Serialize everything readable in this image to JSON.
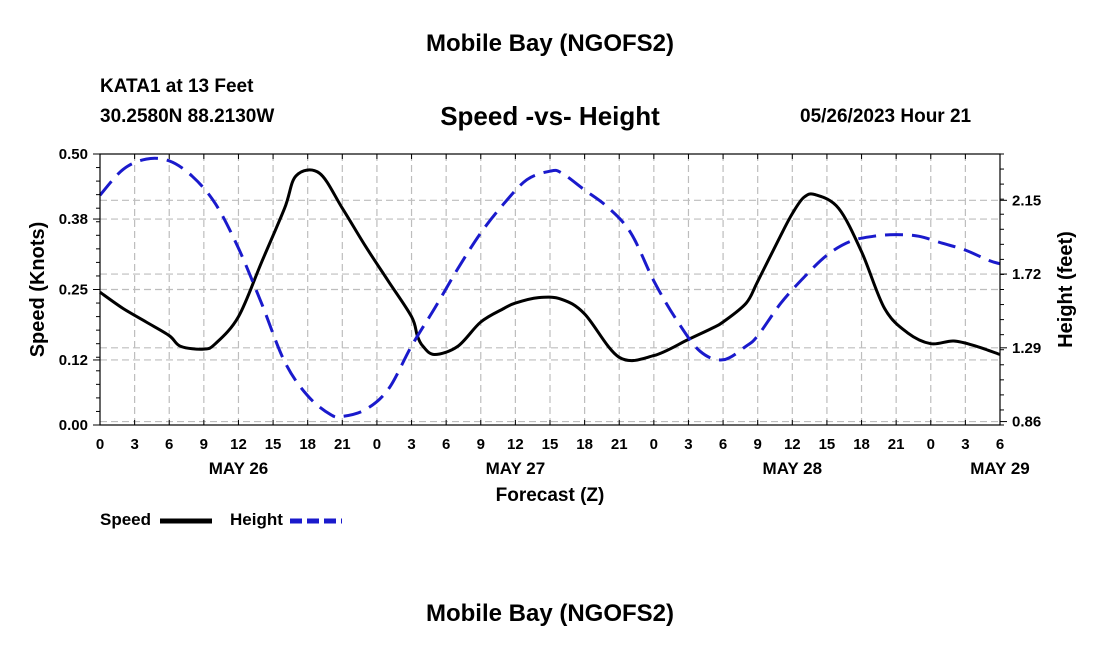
{
  "header": {
    "title": "Mobile Bay (NGOFS2)",
    "station": "KATA1 at 13 Feet",
    "coords": "30.2580N  88.2130W",
    "subtitle": "Speed -vs- Height",
    "datetime": "05/26/2023 Hour 21"
  },
  "footer": {
    "title": "Mobile Bay (NGOFS2)"
  },
  "chart_data": {
    "type": "line",
    "title": "Speed -vs- Height",
    "xlabel": "Forecast (Z)",
    "ylabel": "Speed (Knots)",
    "y2label": "Height (feet)",
    "x_tick_labels": [
      "0",
      "3",
      "6",
      "9",
      "12",
      "15",
      "18",
      "21",
      "0",
      "3",
      "6",
      "9",
      "12",
      "15",
      "18",
      "21",
      "0",
      "3",
      "6",
      "9",
      "12",
      "15",
      "18",
      "21",
      "0",
      "3",
      "6"
    ],
    "day_labels": [
      {
        "label": "MAY 26",
        "hour": 12
      },
      {
        "label": "MAY 27",
        "hour": 36
      },
      {
        "label": "MAY 28",
        "hour": 60
      },
      {
        "label": "MAY 29",
        "hour": 78
      }
    ],
    "xlim": [
      0,
      78
    ],
    "ylim": [
      0,
      0.5
    ],
    "y_ticks": [
      "0.00",
      "0.12",
      "0.25",
      "0.38",
      "0.50"
    ],
    "y2lim": [
      0.84,
      2.42
    ],
    "y2_ticks": [
      "0.86",
      "1.29",
      "1.72",
      "2.15"
    ],
    "grid": true,
    "series": [
      {
        "name": "Speed",
        "axis": "left",
        "color": "#000000",
        "dash": "solid",
        "x": [
          0,
          2,
          4,
          6,
          7,
          9,
          10,
          12,
          14,
          16,
          17,
          19,
          21,
          23,
          25,
          27,
          27.5,
          28,
          29,
          31,
          33,
          35,
          36,
          38,
          40,
          42,
          45,
          48,
          51,
          53,
          54,
          56,
          57,
          59,
          60,
          61,
          62,
          64,
          66,
          68,
          70,
          72,
          74,
          76,
          78
        ],
        "y": [
          0.245,
          0.215,
          0.19,
          0.165,
          0.145,
          0.14,
          0.15,
          0.2,
          0.3,
          0.4,
          0.46,
          0.465,
          0.4,
          0.33,
          0.265,
          0.2,
          0.165,
          0.145,
          0.13,
          0.145,
          0.19,
          0.215,
          0.225,
          0.235,
          0.232,
          0.205,
          0.125,
          0.128,
          0.158,
          0.178,
          0.19,
          0.225,
          0.265,
          0.35,
          0.39,
          0.42,
          0.425,
          0.4,
          0.32,
          0.215,
          0.17,
          0.15,
          0.155,
          0.145,
          0.13
        ]
      },
      {
        "name": "Height",
        "axis": "right",
        "color": "#1a1acc",
        "dash": "dashed",
        "x": [
          0,
          2,
          4,
          6,
          8,
          10,
          12,
          14,
          16,
          18,
          20,
          21,
          23,
          25,
          27,
          29,
          31,
          33,
          35,
          37,
          39,
          40,
          42,
          44,
          46,
          48,
          50,
          52,
          54,
          56,
          57,
          59,
          61,
          63,
          65,
          67,
          69,
          71,
          73,
          75,
          77,
          78
        ],
        "y": [
          2.18,
          2.33,
          2.39,
          2.38,
          2.29,
          2.13,
          1.87,
          1.55,
          1.21,
          1.01,
          0.9,
          0.89,
          0.93,
          1.05,
          1.3,
          1.52,
          1.75,
          1.96,
          2.13,
          2.27,
          2.32,
          2.31,
          2.21,
          2.11,
          1.96,
          1.68,
          1.45,
          1.27,
          1.22,
          1.3,
          1.36,
          1.55,
          1.7,
          1.83,
          1.91,
          1.94,
          1.95,
          1.94,
          1.9,
          1.86,
          1.8,
          1.78
        ]
      }
    ],
    "legend": [
      {
        "label": "Speed",
        "color": "#000000",
        "dash": "solid"
      },
      {
        "label": "Height",
        "color": "#1a1acc",
        "dash": "dashed"
      }
    ]
  }
}
